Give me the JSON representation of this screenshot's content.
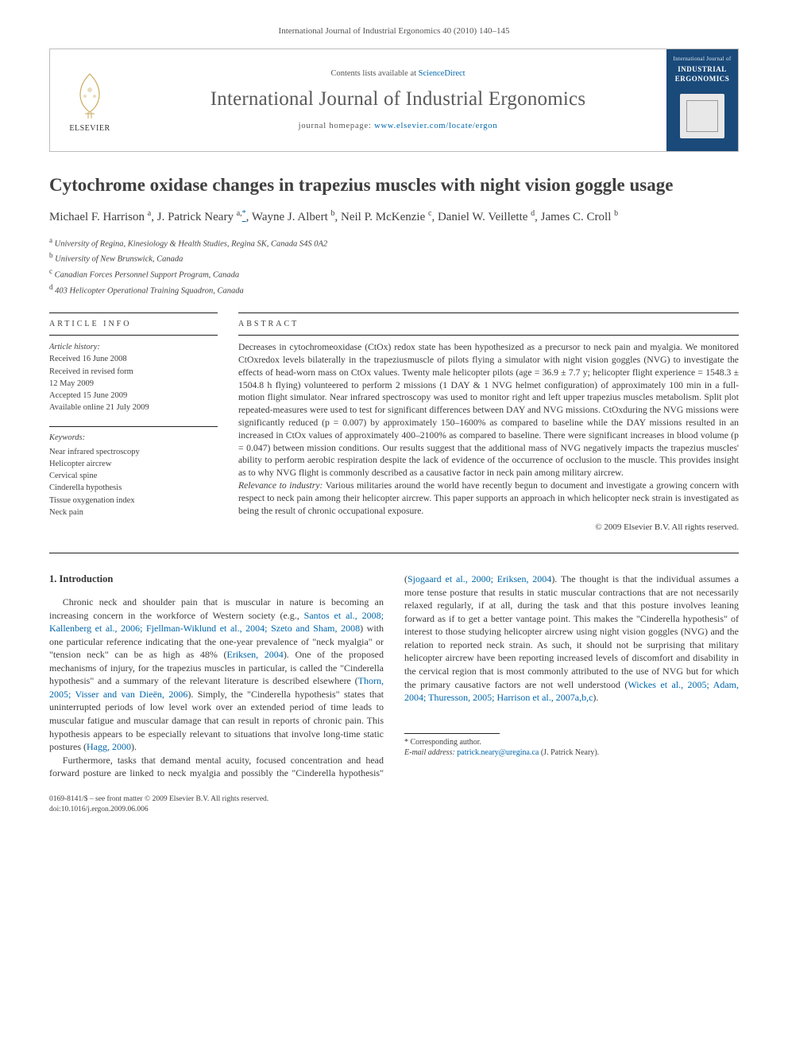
{
  "journal": {
    "citation": "International Journal of Industrial Ergonomics 40 (2010) 140–145",
    "contents_prefix": "Contents lists available at ",
    "contents_link": "ScienceDirect",
    "title": "International Journal of Industrial Ergonomics",
    "homepage_prefix": "journal homepage: ",
    "homepage_url": "www.elsevier.com/locate/ergon",
    "publisher_mark": "ELSEVIER",
    "cover_small": "International Journal of",
    "cover_main": "INDUSTRIAL ERGONOMICS"
  },
  "article": {
    "title": "Cytochrome oxidase changes in trapezius muscles with night vision goggle usage",
    "authors_html": "Michael F. Harrison <sup>a</sup>, J. Patrick Neary <sup>a,</sup><a class=\"corr-link\" href=\"#\"><sup>*</sup></a>, Wayne J. Albert <sup>b</sup>, Neil P. McKenzie <sup>c</sup>, Daniel W. Veillette <sup>d</sup>, James C. Croll <sup>b</sup>",
    "affiliations": [
      "University of Regina, Kinesiology & Health Studies, Regina SK, Canada S4S 0A2",
      "University of New Brunswick, Canada",
      "Canadian Forces Personnel Support Program, Canada",
      "403 Helicopter Operational Training Squadron, Canada"
    ],
    "aff_markers": [
      "a",
      "b",
      "c",
      "d"
    ]
  },
  "info": {
    "head": "ARTICLE INFO",
    "history_label": "Article history:",
    "received": "Received 16 June 2008",
    "revised_l1": "Received in revised form",
    "revised_l2": "12 May 2009",
    "accepted": "Accepted 15 June 2009",
    "online": "Available online 21 July 2009",
    "keywords_label": "Keywords:",
    "keywords": [
      "Near infrared spectroscopy",
      "Helicopter aircrew",
      "Cervical spine",
      "Cinderella hypothesis",
      "Tissue oxygenation index",
      "Neck pain"
    ]
  },
  "abstract": {
    "head": "ABSTRACT",
    "body": "Decreases in cytochromeoxidase (CtOx) redox state has been hypothesized as a precursor to neck pain and myalgia. We monitored CtOxredox levels bilaterally in the trapeziusmuscle of pilots flying a simulator with night vision goggles (NVG) to investigate the effects of head-worn mass on CtOx values. Twenty male helicopter pilots (age = 36.9 ± 7.7 y; helicopter flight experience = 1548.3 ± 1504.8 h flying) volunteered to perform 2 missions (1 DAY & 1 NVG helmet configuration) of approximately 100 min in a full-motion flight simulator. Near infrared spectroscopy was used to monitor right and left upper trapezius muscles metabolism. Split plot repeated-measures were used to test for significant differences between DAY and NVG missions. CtOxduring the NVG missions were significantly reduced (p = 0.007) by approximately 150–1600% as compared to baseline while the DAY missions resulted in an increased in CtOx values of approximately 400–2100% as compared to baseline. There were significant increases in blood volume (p = 0.047) between mission conditions. Our results suggest that the additional mass of NVG negatively impacts the trapezius muscles' ability to perform aerobic respiration despite the lack of evidence of the occurrence of occlusion to the muscle. This provides insight as to why NVG flight is commonly described as a causative factor in neck pain among military aircrew.",
    "relevance_label": "Relevance to industry:",
    "relevance_body": " Various militaries around the world have recently begun to document and investigate a growing concern with respect to neck pain among their helicopter aircrew. This paper supports an approach in which helicopter neck strain is investigated as being the result of chronic occupational exposure.",
    "copyright": "© 2009 Elsevier B.V. All rights reserved."
  },
  "intro": {
    "head": "1. Introduction",
    "p1_a": "Chronic neck and shoulder pain that is muscular in nature is becoming an increasing concern in the workforce of Western society (e.g., ",
    "p1_cite1": "Santos et al., 2008; Kallenberg et al., 2006; Fjellman-Wiklund et al., 2004; Szeto and Sham, 2008",
    "p1_b": ") with one particular reference indicating that the one-year prevalence of \"neck myalgia\" or \"tension neck\" can be as high as 48% (",
    "p1_cite2": "Eriksen, 2004",
    "p1_c": "). One of the proposed mechanisms of injury, for the trapezius muscles in particular, is called the \"Cinderella hypothesis\" and a summary of the relevant literature is described elsewhere (",
    "p1_cite3": "Thorn, 2005; Visser and van Dieën, 2006",
    "p1_d": "). Simply, the \"Cinderella hypothesis\" states that uninterrupted periods of low level work over an extended period of time leads to muscular fatigue and muscular damage that can result in reports of chronic pain. This hypothesis appears to be especially relevant to situations that involve long-time static postures (",
    "p1_cite4": "Hagg, 2000",
    "p1_e": ").",
    "p2_a": "Furthermore, tasks that demand mental acuity, focused concentration and head forward posture are linked to neck myalgia and possibly the \"Cinderella hypothesis\"(",
    "p2_cite1": "Sjogaard et al., 2000; Eriksen, 2004",
    "p2_b": "). The thought is that the individual assumes a more tense posture that results in static muscular contractions that are not necessarily relaxed regularly, if at all, during the task and that this posture involves leaning forward as if to get a better vantage point. This makes the \"Cinderella hypothesis\" of interest to those studying helicopter aircrew using night vision goggles (NVG) and the relation to reported neck strain. As such, it should not be surprising that military helicopter aircrew have been reporting increased levels of discomfort and disability in the cervical region that is most commonly attributed to the use of NVG but for which the primary causative factors are not well understood (",
    "p2_cite2": "Wickes et al., 2005; Adam, 2004; Thuresson, 2005; Harrison et al., 2007a,b,c",
    "p2_c": ")."
  },
  "footnote": {
    "marker": "*",
    "label": "Corresponding author.",
    "email_label": "E-mail address:",
    "email": "patrick.neary@uregina.ca",
    "email_attr": " (J. Patrick Neary)."
  },
  "footer": {
    "line1": "0169-8141/$ – see front matter © 2009 Elsevier B.V. All rights reserved.",
    "line2": "doi:10.1016/j.ergon.2009.06.006"
  },
  "colors": {
    "link": "#0066aa",
    "text": "#3a3a3a",
    "rule": "#222222",
    "cover_bg": "#1a4a7a"
  }
}
